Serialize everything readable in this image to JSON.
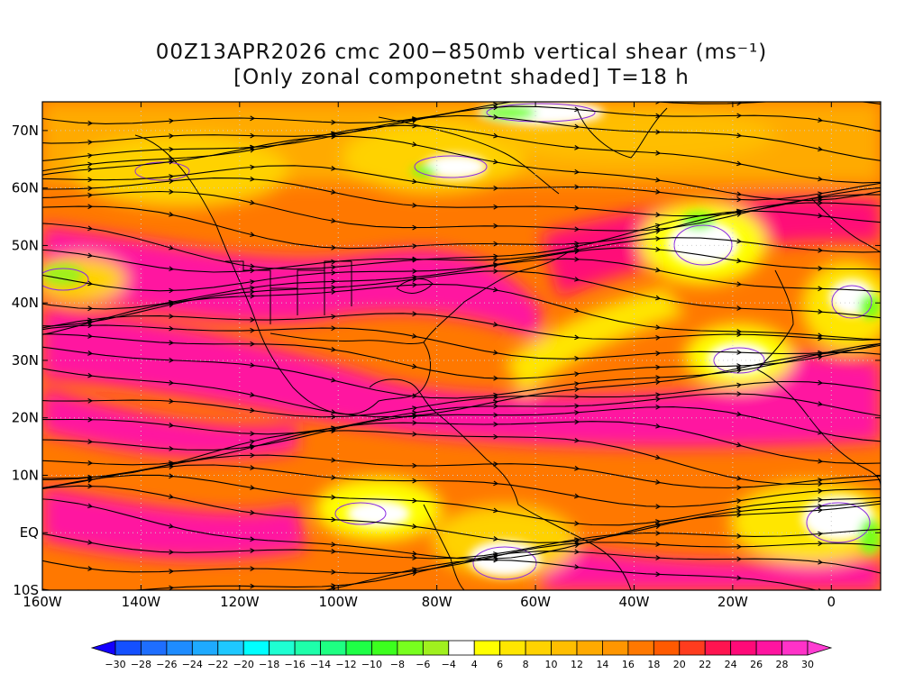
{
  "title": {
    "line1": "00Z13APR2026 cmc 200−850mb vertical shear (ms⁻¹)",
    "line2": "[Only zonal componetnt shaded] T=18 h"
  },
  "map": {
    "lon_range": [
      -160,
      10
    ],
    "lat_range": [
      -10,
      75
    ],
    "lat_ticks": [
      {
        "lat": 70,
        "label": "70N"
      },
      {
        "lat": 60,
        "label": "60N"
      },
      {
        "lat": 50,
        "label": "50N"
      },
      {
        "lat": 40,
        "label": "40N"
      },
      {
        "lat": 30,
        "label": "30N"
      },
      {
        "lat": 20,
        "label": "20N"
      },
      {
        "lat": 10,
        "label": "10N"
      },
      {
        "lat": 0,
        "label": "EQ"
      },
      {
        "lat": -10,
        "label": "10S"
      }
    ],
    "lon_ticks": [
      {
        "lon": -160,
        "label": "160W"
      },
      {
        "lon": -140,
        "label": "140W"
      },
      {
        "lon": -120,
        "label": "120W"
      },
      {
        "lon": -100,
        "label": "100W"
      },
      {
        "lon": -80,
        "label": "80W"
      },
      {
        "lon": -60,
        "label": "60W"
      },
      {
        "lon": -40,
        "label": "40W"
      },
      {
        "lon": -20,
        "label": "20W"
      },
      {
        "lon": 0,
        "label": "0"
      }
    ]
  },
  "colorbar": {
    "labels": [
      "-30",
      "-28",
      "-26",
      "-24",
      "-22",
      "-20",
      "-18",
      "-16",
      "-14",
      "-12",
      "-10",
      "-8",
      "-6",
      "-4",
      "4",
      "6",
      "8",
      "10",
      "12",
      "14",
      "16",
      "18",
      "20",
      "22",
      "24",
      "26",
      "28",
      "30"
    ],
    "colors": [
      "#1400ff",
      "#1450ff",
      "#1e6eff",
      "#1e8cff",
      "#1eaaff",
      "#1ec8ff",
      "#00ffff",
      "#1effd2",
      "#1effaa",
      "#1eff82",
      "#1eff46",
      "#3cff1e",
      "#78ff1e",
      "#a0f01e",
      "#ffffff",
      "#ffff00",
      "#ffe600",
      "#ffd200",
      "#ffbe00",
      "#ffaa00",
      "#ff9600",
      "#ff7800",
      "#ff5a00",
      "#ff3c1e",
      "#ff1450",
      "#ff0a78",
      "#ff14a0",
      "#ff32c8",
      "#ff3cd2"
    ]
  }
}
